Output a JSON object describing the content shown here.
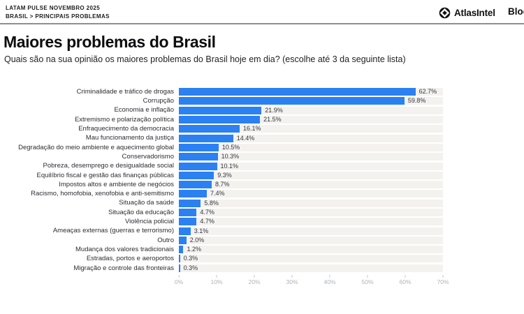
{
  "header": {
    "kicker_line1": "LATAM PULSE NOVEMBRO 2025",
    "kicker_line2": "BRASIL > PRINCIPAIS PROBLEMAS",
    "brand": "AtlasIntel",
    "partner_brand_visible": "Bloc"
  },
  "title": "Maiores problemas do Brasil",
  "subtitle": "Quais são na sua opinião os maiores problemas do Brasil hoje em dia? (escolhe até 3 da seguinte lista)",
  "chart_data": {
    "type": "bar",
    "orientation": "horizontal",
    "title": "Maiores problemas do Brasil",
    "categories": [
      "Criminalidade e tráfico de drogas",
      "Corrupção",
      "Economia e inflação",
      "Extremismo e polarização política",
      "Enfraquecimento da democracia",
      "Mau funcionamento da justiça",
      "Degradação do meio ambiente e aquecimento global",
      "Conservadorismo",
      "Pobreza, desemprego e desigualdade social",
      "Equilíbrio fiscal e gestão das finanças públicas",
      "Impostos altos e ambiente de negócios",
      "Racismo, homofobia, xenofobia e anti-semitismo",
      "Situação da saúde",
      "Situação da educação",
      "Violência policial",
      "Ameaças externas (guerras e terrorismo)",
      "Outro",
      "Mudança dos valores tradicionais",
      "Estradas, portos e aeroportos",
      "Migração e controle das fronteiras"
    ],
    "values": [
      62.7,
      59.8,
      21.9,
      21.5,
      16.1,
      14.4,
      10.5,
      10.3,
      10.1,
      9.3,
      8.7,
      7.4,
      5.8,
      4.7,
      4.7,
      3.1,
      2.0,
      1.2,
      0.3,
      0.3
    ],
    "value_labels": [
      "62.7%",
      "59.8%",
      "21.9%",
      "21.5%",
      "16.1%",
      "14.4%",
      "10.5%",
      "10.3%",
      "10.1%",
      "9.3%",
      "8.7%",
      "7.4%",
      "5.8%",
      "4.7%",
      "4.7%",
      "3.1%",
      "2.0%",
      "1.2%",
      "0.3%",
      "0.3%"
    ],
    "x_ticks": [
      "0%",
      "10%",
      "20%",
      "30%",
      "40%",
      "50%",
      "60%",
      "70%"
    ],
    "xlim": [
      0,
      70
    ],
    "grid": false,
    "legend": "none",
    "bar_color": "#2b80f2",
    "row_stripe_color": "#f4f2ef"
  }
}
